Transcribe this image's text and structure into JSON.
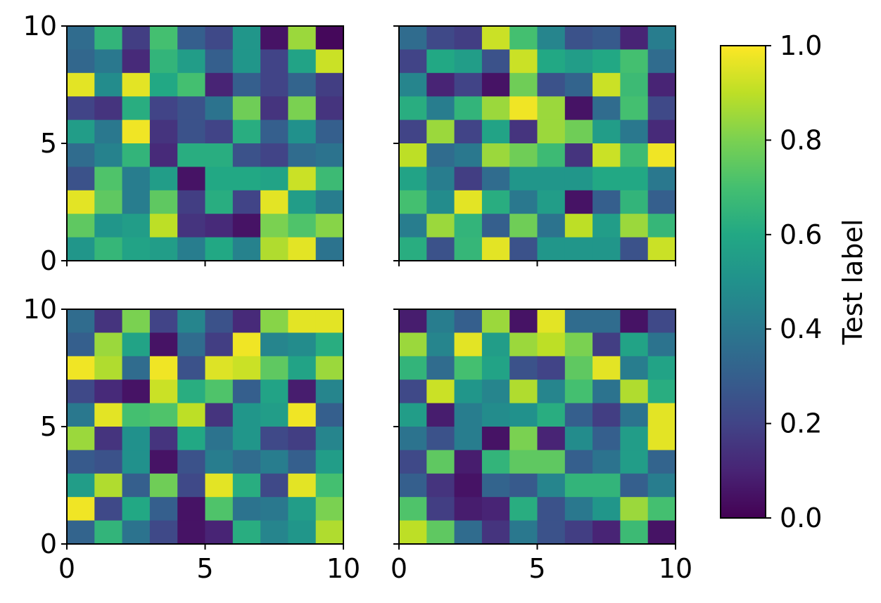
{
  "chart_data": {
    "type": "heatmap",
    "colormap": "viridis",
    "colorbar": {
      "label": "Test label",
      "range": [
        0,
        1
      ],
      "ticks": [
        "0.0",
        "0.2",
        "0.4",
        "0.6",
        "0.8",
        "1.0"
      ]
    },
    "xlim": [
      0,
      10
    ],
    "ylim": [
      0,
      10
    ],
    "x_ticks": [
      "0",
      "5",
      "10"
    ],
    "y_ticks": [
      "0",
      "5",
      "10"
    ],
    "panels": [
      {
        "row": 1,
        "col": 1,
        "values": [
          [
            0.35,
            0.65,
            0.18,
            0.7,
            0.3,
            0.22,
            0.52,
            0.05,
            0.85,
            0.02
          ],
          [
            0.33,
            0.4,
            0.12,
            0.65,
            0.55,
            0.3,
            0.52,
            0.2,
            0.58,
            0.92
          ],
          [
            0.96,
            0.48,
            0.96,
            0.6,
            0.7,
            0.1,
            0.3,
            0.2,
            0.32,
            0.18
          ],
          [
            0.2,
            0.15,
            0.62,
            0.2,
            0.25,
            0.38,
            0.78,
            0.15,
            0.8,
            0.15
          ],
          [
            0.55,
            0.4,
            0.98,
            0.15,
            0.25,
            0.2,
            0.62,
            0.3,
            0.5,
            0.3
          ],
          [
            0.35,
            0.44,
            0.65,
            0.12,
            0.62,
            0.62,
            0.25,
            0.2,
            0.35,
            0.38
          ],
          [
            0.25,
            0.72,
            0.42,
            0.55,
            0.05,
            0.6,
            0.6,
            0.58,
            0.92,
            0.68
          ],
          [
            0.96,
            0.75,
            0.42,
            0.75,
            0.18,
            0.62,
            0.2,
            0.96,
            0.55,
            0.42
          ],
          [
            0.75,
            0.52,
            0.55,
            0.9,
            0.15,
            0.12,
            0.05,
            0.8,
            0.72,
            0.82
          ],
          [
            0.52,
            0.66,
            0.58,
            0.55,
            0.42,
            0.6,
            0.44,
            0.88,
            0.96,
            0.38
          ]
        ]
      },
      {
        "row": 1,
        "col": 2,
        "values": [
          [
            0.35,
            0.22,
            0.18,
            0.92,
            0.7,
            0.45,
            0.25,
            0.28,
            0.1,
            0.42
          ],
          [
            0.2,
            0.6,
            0.55,
            0.25,
            0.92,
            0.6,
            0.55,
            0.6,
            0.7,
            0.35
          ],
          [
            0.45,
            0.1,
            0.2,
            0.05,
            0.78,
            0.25,
            0.32,
            0.92,
            0.68,
            0.1
          ],
          [
            0.62,
            0.42,
            0.65,
            0.85,
            0.98,
            0.85,
            0.05,
            0.35,
            0.7,
            0.22
          ],
          [
            0.2,
            0.85,
            0.2,
            0.58,
            0.15,
            0.85,
            0.78,
            0.55,
            0.4,
            0.12
          ],
          [
            0.9,
            0.35,
            0.4,
            0.85,
            0.78,
            0.68,
            0.15,
            0.92,
            0.68,
            0.98
          ],
          [
            0.58,
            0.42,
            0.18,
            0.35,
            0.52,
            0.52,
            0.52,
            0.6,
            0.6,
            0.4
          ],
          [
            0.7,
            0.48,
            0.96,
            0.62,
            0.4,
            0.55,
            0.05,
            0.3,
            0.65,
            0.3
          ],
          [
            0.42,
            0.85,
            0.65,
            0.3,
            0.78,
            0.38,
            0.9,
            0.55,
            0.85,
            0.66
          ],
          [
            0.62,
            0.25,
            0.66,
            0.96,
            0.25,
            0.52,
            0.52,
            0.52,
            0.25,
            0.92
          ]
        ]
      },
      {
        "row": 2,
        "col": 1,
        "values": [
          [
            0.35,
            0.15,
            0.8,
            0.2,
            0.45,
            0.25,
            0.12,
            0.82,
            0.96,
            0.96
          ],
          [
            0.3,
            0.85,
            0.58,
            0.05,
            0.35,
            0.18,
            0.98,
            0.45,
            0.48,
            0.62
          ],
          [
            0.98,
            0.88,
            0.35,
            0.98,
            0.25,
            0.95,
            0.92,
            0.75,
            0.58,
            0.85
          ],
          [
            0.22,
            0.12,
            0.05,
            0.92,
            0.62,
            0.72,
            0.3,
            0.58,
            0.08,
            0.45
          ],
          [
            0.4,
            0.96,
            0.7,
            0.72,
            0.9,
            0.15,
            0.52,
            0.55,
            0.98,
            0.3
          ],
          [
            0.85,
            0.15,
            0.5,
            0.15,
            0.6,
            0.38,
            0.52,
            0.22,
            0.18,
            0.45
          ],
          [
            0.28,
            0.25,
            0.5,
            0.05,
            0.25,
            0.42,
            0.35,
            0.42,
            0.3,
            0.55
          ],
          [
            0.55,
            0.88,
            0.3,
            0.78,
            0.22,
            0.96,
            0.62,
            0.22,
            0.96,
            0.7
          ],
          [
            0.98,
            0.22,
            0.6,
            0.3,
            0.05,
            0.72,
            0.38,
            0.4,
            0.55,
            0.8
          ],
          [
            0.32,
            0.65,
            0.38,
            0.22,
            0.05,
            0.1,
            0.62,
            0.45,
            0.52,
            0.88
          ]
        ]
      },
      {
        "row": 2,
        "col": 2,
        "values": [
          [
            0.08,
            0.42,
            0.3,
            0.85,
            0.05,
            0.96,
            0.35,
            0.35,
            0.05,
            0.22
          ],
          [
            0.85,
            0.45,
            0.96,
            0.55,
            0.85,
            0.9,
            0.8,
            0.18,
            0.58,
            0.38
          ],
          [
            0.65,
            0.35,
            0.7,
            0.58,
            0.25,
            0.2,
            0.75,
            0.96,
            0.42,
            0.58
          ],
          [
            0.22,
            0.92,
            0.52,
            0.45,
            0.88,
            0.45,
            0.7,
            0.38,
            0.88,
            0.62
          ],
          [
            0.55,
            0.08,
            0.42,
            0.48,
            0.5,
            0.62,
            0.3,
            0.18,
            0.38,
            0.96
          ],
          [
            0.38,
            0.25,
            0.42,
            0.05,
            0.8,
            0.1,
            0.48,
            0.3,
            0.55,
            0.96
          ],
          [
            0.22,
            0.75,
            0.08,
            0.65,
            0.75,
            0.75,
            0.3,
            0.38,
            0.55,
            0.32
          ],
          [
            0.3,
            0.15,
            0.05,
            0.32,
            0.28,
            0.45,
            0.65,
            0.65,
            0.3,
            0.42
          ],
          [
            0.72,
            0.18,
            0.08,
            0.1,
            0.62,
            0.25,
            0.4,
            0.52,
            0.85,
            0.7
          ],
          [
            0.9,
            0.75,
            0.35,
            0.15,
            0.4,
            0.25,
            0.18,
            0.1,
            0.68,
            0.05
          ]
        ]
      }
    ]
  }
}
